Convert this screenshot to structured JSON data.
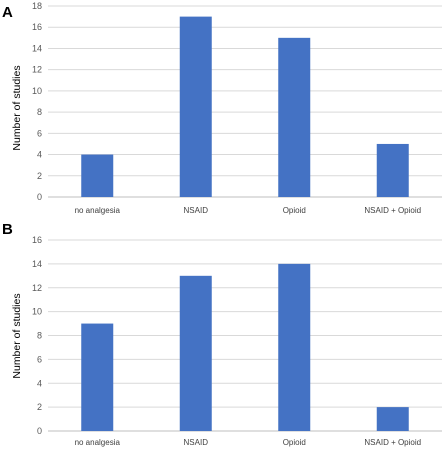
{
  "chart_data": [
    {
      "panel": "A",
      "type": "bar",
      "categories": [
        "no analgesia",
        "NSAID",
        "Opioid",
        "NSAID + Opioid"
      ],
      "values": [
        4,
        17,
        15,
        5
      ],
      "ylabel": "Number of studies",
      "xlabel": "",
      "ylim": [
        0,
        18
      ],
      "yticks": [
        0,
        2,
        4,
        6,
        8,
        10,
        12,
        14,
        16,
        18
      ],
      "grid": true,
      "bar_color": "#4472C4"
    },
    {
      "panel": "B",
      "type": "bar",
      "categories": [
        "no analgesia",
        "NSAID",
        "Opioid",
        "NSAID + Opioid"
      ],
      "values": [
        9,
        13,
        14,
        2
      ],
      "ylabel": "Number of studies",
      "xlabel": "",
      "ylim": [
        0,
        16
      ],
      "yticks": [
        0,
        2,
        4,
        6,
        8,
        10,
        12,
        14,
        16
      ],
      "grid": true,
      "bar_color": "#4472C4"
    }
  ]
}
